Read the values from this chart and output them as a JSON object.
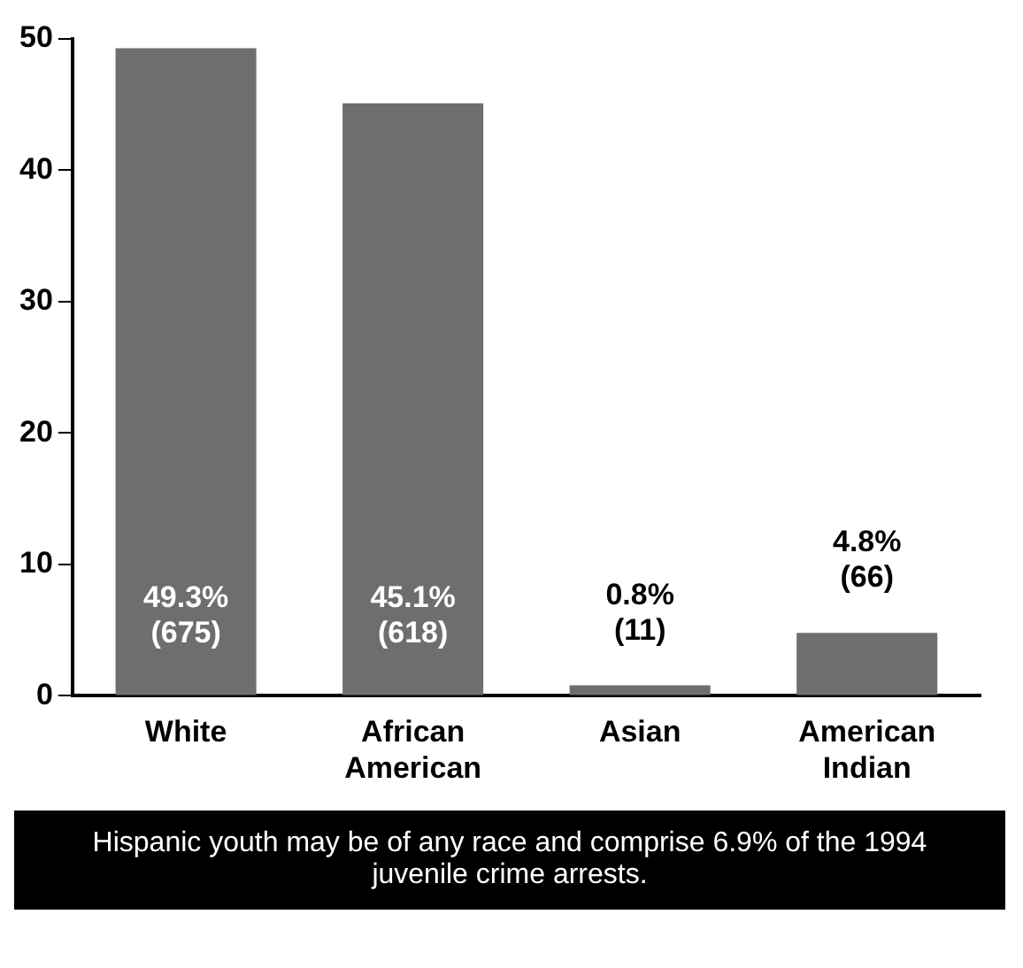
{
  "chart_data": {
    "type": "bar",
    "categories": [
      "White",
      "African\nAmerican",
      "Asian",
      "American\nIndian"
    ],
    "values": [
      49.3,
      45.1,
      0.8,
      4.8
    ],
    "value_labels": [
      "49.3%\n(675)",
      "45.1%\n(618)",
      "0.8%\n(11)",
      "4.8%\n(66)"
    ],
    "color": "#6e6e6e",
    "ylim": [
      0,
      50
    ],
    "yticks": [
      0,
      10,
      20,
      30,
      40,
      50
    ],
    "grid": false,
    "legend": false,
    "annotations": [
      "Hispanic youth may be of any race and comprise 6.9% of the 1994 juvenile crime arrests."
    ]
  }
}
